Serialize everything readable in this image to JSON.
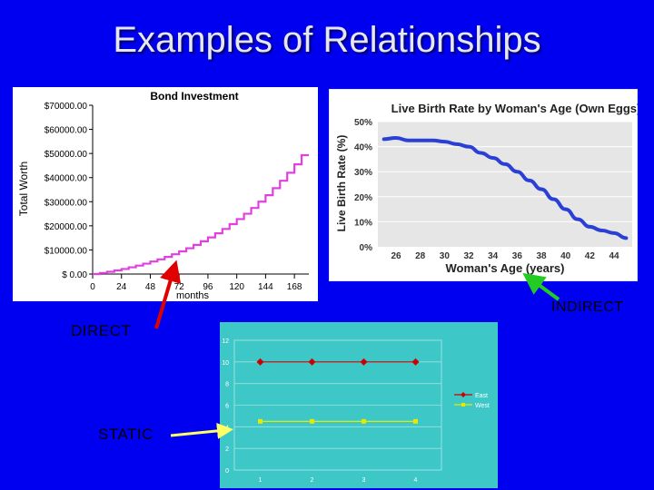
{
  "title": "Examples of Relationships",
  "labels": {
    "direct": "DIRECT",
    "indirect": "INDIRECT",
    "static": "STATIC"
  },
  "colors": {
    "background": "#0000f0",
    "bond_line": "#e040e0",
    "birth_line": "#2a3fd6",
    "east": "#cc0000",
    "west": "#e8e800",
    "arrow_red": "#e00000",
    "arrow_green": "#22cc22",
    "arrow_yellow": "#ffff66"
  },
  "chart_data": [
    {
      "id": "bond",
      "type": "line",
      "title": "Bond Investment",
      "xlabel": "months",
      "ylabel": "Total Worth",
      "xlim": [
        0,
        180
      ],
      "ylim": [
        0,
        70000
      ],
      "x_ticks": [
        "0",
        "24",
        "48",
        "72",
        "96",
        "120",
        "144",
        "168"
      ],
      "y_ticks": [
        "$ 0.00",
        "$10000.00",
        "$20000.00",
        "$30000.00",
        "$40000.00",
        "$50000.00",
        "$60000.00",
        "$70000.00"
      ],
      "series": [
        {
          "x": [
            0,
            6,
            12,
            18,
            24,
            30,
            36,
            42,
            48,
            54,
            60,
            66,
            72,
            78,
            84,
            90,
            96,
            102,
            108,
            114,
            120,
            126,
            132,
            138,
            144,
            150,
            156,
            162,
            168,
            174
          ],
          "values": [
            0,
            450,
            950,
            1500,
            2100,
            2800,
            3500,
            4300,
            5200,
            6100,
            7100,
            8200,
            9400,
            10700,
            12100,
            13600,
            15200,
            16900,
            18700,
            20700,
            22800,
            25000,
            27400,
            30000,
            32700,
            35600,
            38700,
            42000,
            45500,
            49300
          ]
        }
      ]
    },
    {
      "id": "birth",
      "type": "line",
      "title": "Live Birth Rate by Woman's Age (Own Eggs)",
      "xlabel": "Woman's Age (years)",
      "ylabel": "Live Birth Rate (%)",
      "xlim": [
        24.5,
        45.5
      ],
      "ylim": [
        0,
        50
      ],
      "x_ticks": [
        "26",
        "28",
        "30",
        "32",
        "34",
        "36",
        "38",
        "40",
        "42",
        "44"
      ],
      "y_ticks": [
        "0%",
        "10%",
        "20%",
        "30%",
        "40%",
        "50%"
      ],
      "series": [
        {
          "x": [
            25,
            26,
            27,
            28,
            29,
            30,
            31,
            32,
            33,
            34,
            35,
            36,
            37,
            38,
            39,
            40,
            41,
            42,
            43,
            44,
            45
          ],
          "values": [
            43,
            43.5,
            42.5,
            42.5,
            42.5,
            42,
            41,
            40,
            37.5,
            35.5,
            33,
            30,
            26.5,
            23,
            19,
            15,
            11,
            8,
            6.5,
            5.5,
            3.5
          ]
        }
      ]
    },
    {
      "id": "static",
      "type": "line",
      "xlim": [
        0.5,
        4.5
      ],
      "ylim": [
        0,
        12
      ],
      "x_ticks": [
        "1",
        "2",
        "3",
        "4"
      ],
      "y_ticks": [
        "0",
        "2",
        "4",
        "6",
        "8",
        "10",
        "12"
      ],
      "series": [
        {
          "name": "East",
          "x": [
            1,
            2,
            3,
            4
          ],
          "values": [
            10,
            10,
            10,
            10
          ]
        },
        {
          "name": "West",
          "x": [
            1,
            2,
            3,
            4
          ],
          "values": [
            4.5,
            4.5,
            4.5,
            4.5
          ]
        }
      ]
    }
  ]
}
